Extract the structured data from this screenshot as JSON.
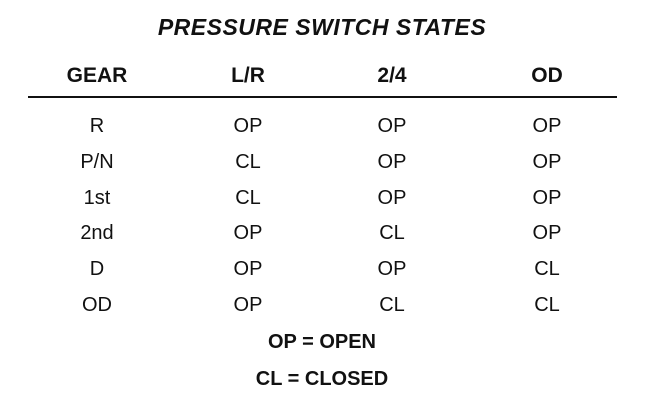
{
  "title": "PRESSURE SWITCH STATES",
  "columns": [
    "GEAR",
    "L/R",
    "2/4",
    "OD"
  ],
  "rows": [
    [
      "R",
      "OP",
      "OP",
      "OP"
    ],
    [
      "P/N",
      "CL",
      "OP",
      "OP"
    ],
    [
      "1st",
      "CL",
      "OP",
      "OP"
    ],
    [
      "2nd",
      "OP",
      "CL",
      "OP"
    ],
    [
      "D",
      "OP",
      "OP",
      "CL"
    ],
    [
      "OD",
      "OP",
      "CL",
      "CL"
    ]
  ],
  "legend": [
    "OP = OPEN",
    "CL = CLOSED"
  ]
}
